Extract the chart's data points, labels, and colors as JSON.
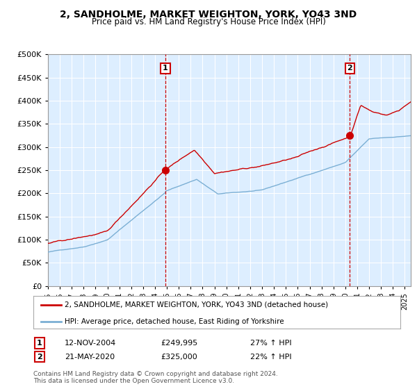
{
  "title": "2, SANDHOLME, MARKET WEIGHTON, YORK, YO43 3ND",
  "subtitle": "Price paid vs. HM Land Registry's House Price Index (HPI)",
  "legend_line1": "2, SANDHOLME, MARKET WEIGHTON, YORK, YO43 3ND (detached house)",
  "legend_line2": "HPI: Average price, detached house, East Riding of Yorkshire",
  "annotation1_date": "12-NOV-2004",
  "annotation1_price": "£249,995",
  "annotation1_hpi": "27% ↑ HPI",
  "annotation2_date": "21-MAY-2020",
  "annotation2_price": "£325,000",
  "annotation2_hpi": "22% ↑ HPI",
  "footnote": "Contains HM Land Registry data © Crown copyright and database right 2024.\nThis data is licensed under the Open Government Licence v3.0.",
  "red_color": "#cc0000",
  "blue_color": "#7bafd4",
  "bg_color": "#ddeeff",
  "grid_color": "#bbbbbb",
  "marker1_x": 2004.87,
  "marker1_y": 249995,
  "marker2_x": 2020.38,
  "marker2_y": 325000,
  "xmin": 1995.0,
  "xmax": 2025.5,
  "ymin": 0,
  "ymax": 500000,
  "yticks": [
    0,
    50000,
    100000,
    150000,
    200000,
    250000,
    300000,
    350000,
    400000,
    450000,
    500000
  ]
}
